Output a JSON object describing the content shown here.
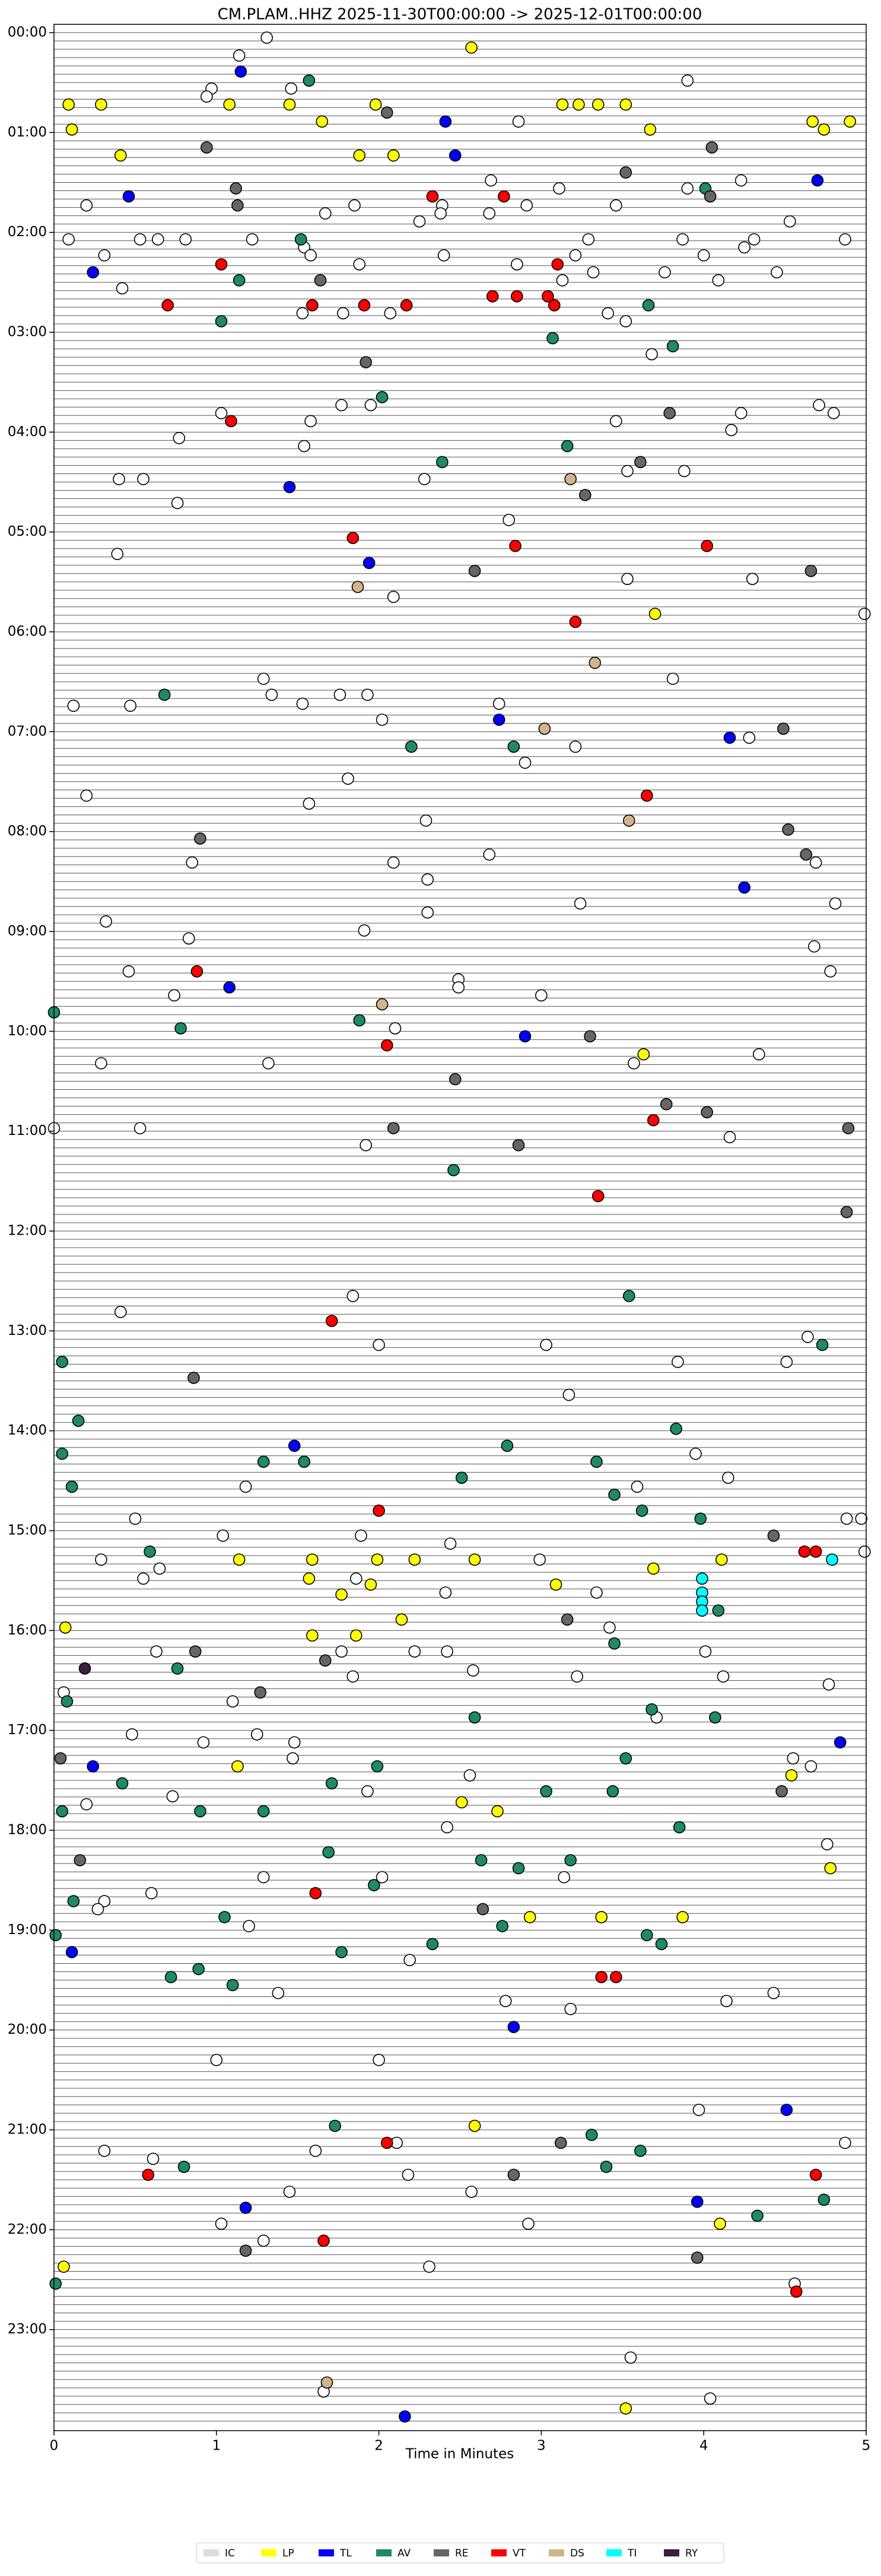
{
  "chart_data": {
    "type": "scatter",
    "title": "CM.PLAM..HHZ  2025-11-30T00:00:00 -> 2025-12-01T00:00:00",
    "xlabel": "Time in Minutes",
    "xlim": [
      0,
      5
    ],
    "xticks": [
      0,
      1,
      2,
      3,
      4,
      5
    ],
    "ylim": [
      0,
      24
    ],
    "y_inverted": true,
    "yticks": [
      {
        "value": 0,
        "label": "00:00"
      },
      {
        "value": 1,
        "label": "01:00"
      },
      {
        "value": 2,
        "label": "02:00"
      },
      {
        "value": 3,
        "label": "03:00"
      },
      {
        "value": 4,
        "label": "04:00"
      },
      {
        "value": 5,
        "label": "05:00"
      },
      {
        "value": 6,
        "label": "06:00"
      },
      {
        "value": 7,
        "label": "07:00"
      },
      {
        "value": 8,
        "label": "08:00"
      },
      {
        "value": 9,
        "label": "09:00"
      },
      {
        "value": 10,
        "label": "10:00"
      },
      {
        "value": 11,
        "label": "11:00"
      },
      {
        "value": 12,
        "label": "12:00"
      },
      {
        "value": 13,
        "label": "13:00"
      },
      {
        "value": 14,
        "label": "14:00"
      },
      {
        "value": 15,
        "label": "15:00"
      },
      {
        "value": 16,
        "label": "16:00"
      },
      {
        "value": 17,
        "label": "17:00"
      },
      {
        "value": 18,
        "label": "18:00"
      },
      {
        "value": 19,
        "label": "19:00"
      },
      {
        "value": 20,
        "label": "20:00"
      },
      {
        "value": 21,
        "label": "21:00"
      },
      {
        "value": 22,
        "label": "22:00"
      },
      {
        "value": 23,
        "label": "23:00"
      }
    ],
    "grid": false,
    "legend": "bottom",
    "series": [
      {
        "name": "IC",
        "color": "#ffffff",
        "x": [
          1.31,
          1.14,
          3.9,
          0.97,
          1.46,
          0.94,
          2.86,
          2.69,
          4.23,
          3.11,
          3.9,
          0.2,
          1.85,
          2.39,
          2.91,
          3.46,
          1.67,
          2.38,
          2.68,
          2.25,
          4.53,
          0.09,
          0.53,
          0.64,
          0.81,
          1.22,
          3.29,
          3.87,
          4.31,
          4.25,
          4.87,
          1.54,
          0.31,
          1.58,
          2.4,
          3.21,
          4.0,
          1.88,
          2.85,
          3.76,
          3.32,
          4.45,
          3.13,
          4.09,
          0.42,
          1.53,
          1.78,
          2.07,
          3.41,
          3.52,
          3.68,
          1.77,
          1.95,
          1.03,
          4.23,
          4.71,
          4.8,
          1.58,
          3.46,
          4.17,
          0.77,
          1.54,
          3.53,
          3.88,
          0.4,
          0.55,
          2.28,
          0.76,
          2.8,
          0.39,
          3.53,
          4.3,
          2.09,
          4.99,
          1.29,
          3.81,
          1.34,
          1.53,
          1.76,
          1.93,
          2.74,
          0.12,
          0.47,
          2.02,
          4.28,
          3.21,
          2.9,
          1.81,
          0.2,
          1.57,
          2.29,
          2.68,
          4.69,
          0.85,
          2.09,
          2.3,
          3.24,
          4.81,
          2.3,
          0.32,
          1.91,
          0.83,
          4.68,
          0.46,
          4.78,
          2.49,
          2.49,
          0.74,
          3.0,
          2.1,
          4.34,
          0.29,
          1.32,
          3.57,
          0.0,
          0.53,
          4.16,
          1.92,
          1.84,
          0.41,
          4.64,
          2.0,
          3.03,
          3.84,
          4.51,
          3.17,
          3.95,
          4.15,
          1.18,
          3.59,
          0.5,
          4.97,
          4.88,
          1.89,
          1.04,
          2.44,
          4.99,
          0.29,
          2.99,
          0.65,
          0.55,
          1.86,
          2.41,
          3.34,
          3.42,
          0.63,
          1.77,
          2.22,
          2.42,
          4.01,
          2.58,
          1.84,
          3.22,
          4.12,
          4.77,
          0.06,
          1.1,
          3.71,
          0.48,
          1.25,
          0.92,
          1.48,
          1.47,
          4.55,
          4.66,
          2.56,
          0.73,
          1.93,
          0.2,
          2.42,
          4.76,
          1.29,
          2.02,
          3.14,
          0.6,
          0.31,
          0.27,
          1.2,
          2.19,
          1.38,
          2.78,
          4.14,
          4.43,
          3.18,
          1.0,
          2.0,
          3.97,
          0.31,
          2.11,
          4.87,
          1.61,
          0.61,
          2.18,
          1.45,
          2.57,
          1.03,
          2.92,
          1.29,
          2.31,
          4.56,
          1.66,
          3.55,
          4.04
        ],
        "values": [
          0.05,
          0.23,
          0.48,
          0.56,
          0.56,
          0.64,
          0.89,
          1.48,
          1.48,
          1.56,
          1.56,
          1.73,
          1.73,
          1.73,
          1.73,
          1.73,
          1.81,
          1.81,
          1.81,
          1.89,
          1.89,
          2.07,
          2.07,
          2.07,
          2.07,
          2.07,
          2.07,
          2.07,
          2.07,
          2.15,
          2.07,
          2.15,
          2.23,
          2.23,
          2.23,
          2.23,
          2.23,
          2.32,
          2.32,
          2.4,
          2.4,
          2.4,
          2.48,
          2.48,
          2.56,
          2.81,
          2.81,
          2.81,
          2.81,
          2.89,
          3.22,
          3.73,
          3.73,
          3.81,
          3.81,
          3.73,
          3.81,
          3.89,
          3.89,
          3.98,
          4.06,
          4.14,
          4.39,
          4.39,
          4.47,
          4.47,
          4.47,
          4.71,
          4.88,
          5.22,
          5.47,
          5.47,
          5.65,
          5.82,
          6.47,
          6.47,
          6.63,
          6.72,
          6.63,
          6.63,
          6.72,
          6.74,
          6.74,
          6.88,
          7.06,
          7.15,
          7.31,
          7.47,
          7.64,
          7.72,
          7.89,
          8.23,
          8.31,
          8.31,
          8.31,
          8.48,
          8.72,
          8.72,
          8.81,
          8.9,
          8.99,
          9.07,
          9.15,
          9.4,
          9.4,
          9.48,
          9.56,
          9.64,
          9.64,
          9.97,
          10.23,
          10.32,
          10.32,
          10.32,
          10.97,
          10.97,
          11.06,
          11.14,
          12.65,
          12.81,
          13.06,
          13.14,
          13.14,
          13.31,
          13.31,
          13.64,
          14.23,
          14.47,
          14.56,
          14.56,
          14.88,
          14.88,
          14.88,
          15.05,
          15.05,
          15.13,
          15.21,
          15.29,
          15.29,
          15.38,
          15.48,
          15.48,
          15.62,
          15.62,
          15.97,
          16.21,
          16.21,
          16.21,
          16.21,
          16.21,
          16.4,
          16.46,
          16.46,
          16.46,
          16.54,
          16.62,
          16.71,
          16.87,
          17.04,
          17.04,
          17.12,
          17.12,
          17.28,
          17.28,
          17.36,
          17.45,
          17.66,
          17.61,
          17.74,
          17.97,
          18.14,
          18.47,
          18.47,
          18.47,
          18.63,
          18.71,
          18.79,
          18.96,
          19.3,
          19.63,
          19.71,
          19.71,
          19.63,
          19.79,
          20.3,
          20.3,
          20.8,
          21.21,
          21.13,
          21.13,
          21.21,
          21.29,
          21.45,
          21.62,
          21.62,
          21.94,
          21.94,
          22.11,
          22.37,
          22.54,
          23.62,
          23.28,
          23.69
        ]
      },
      {
        "name": "LP",
        "color": "#ffff00",
        "x": [
          2.57,
          0.09,
          0.29,
          1.08,
          1.45,
          1.98,
          3.13,
          3.23,
          3.35,
          3.52,
          1.65,
          4.67,
          4.9,
          0.11,
          3.67,
          4.74,
          0.41,
          1.88,
          2.09,
          3.7,
          3.63,
          1.14,
          1.59,
          1.99,
          2.22,
          2.59,
          4.11,
          3.69,
          1.57,
          1.95,
          1.77,
          3.09,
          2.14,
          0.07,
          1.59,
          1.86,
          1.13,
          4.54,
          2.51,
          2.73,
          4.78,
          2.93,
          3.37,
          3.87,
          2.59,
          4.1,
          0.06,
          3.52
        ],
        "values": [
          0.15,
          0.72,
          0.72,
          0.72,
          0.72,
          0.72,
          0.72,
          0.72,
          0.72,
          0.72,
          0.89,
          0.89,
          0.89,
          0.97,
          0.97,
          0.97,
          1.23,
          1.23,
          1.23,
          5.82,
          10.23,
          15.29,
          15.29,
          15.29,
          15.29,
          15.29,
          15.29,
          15.38,
          15.48,
          15.54,
          15.64,
          15.54,
          15.89,
          15.97,
          16.05,
          16.05,
          17.36,
          17.45,
          17.72,
          17.81,
          18.38,
          18.87,
          18.87,
          18.87,
          20.96,
          21.94,
          22.37,
          23.79
        ]
      },
      {
        "name": "TL",
        "color": "#0000ff",
        "x": [
          1.15,
          2.41,
          2.47,
          4.7,
          0.46,
          0.24,
          1.45,
          1.94,
          2.74,
          4.16,
          4.25,
          1.08,
          2.9,
          1.48,
          4.84,
          0.24,
          0.11,
          2.83,
          4.51,
          3.96,
          1.18,
          2.16
        ],
        "values": [
          0.39,
          0.89,
          1.23,
          1.48,
          1.64,
          2.4,
          4.55,
          5.31,
          6.88,
          7.06,
          8.56,
          9.56,
          10.05,
          14.15,
          17.12,
          17.36,
          19.22,
          19.97,
          20.8,
          21.72,
          21.78,
          23.87
        ]
      },
      {
        "name": "AV",
        "color": "#1f8a63",
        "x": [
          1.57,
          4.01,
          1.52,
          1.14,
          3.66,
          1.03,
          3.07,
          3.81,
          2.02,
          3.16,
          2.39,
          0.68,
          2.2,
          2.83,
          0.0,
          1.88,
          0.78,
          2.46,
          3.54,
          4.73,
          0.05,
          0.15,
          3.83,
          2.79,
          0.05,
          1.29,
          1.54,
          3.34,
          0.11,
          2.51,
          3.45,
          3.62,
          3.98,
          0.59,
          4.09,
          3.45,
          0.76,
          0.08,
          3.68,
          2.59,
          4.07,
          1.99,
          3.52,
          0.42,
          1.71,
          3.03,
          3.44,
          0.05,
          0.9,
          1.29,
          3.85,
          1.69,
          2.63,
          3.18,
          2.86,
          1.97,
          0.12,
          1.05,
          2.76,
          0.01,
          3.65,
          3.74,
          2.33,
          1.77,
          0.89,
          0.72,
          1.1,
          1.73,
          3.31,
          3.61,
          0.8,
          3.4,
          4.74,
          4.33,
          0.01
        ],
        "values": [
          0.48,
          1.56,
          2.07,
          2.48,
          2.73,
          2.89,
          3.06,
          3.14,
          3.65,
          4.14,
          4.3,
          6.63,
          7.15,
          7.15,
          9.81,
          9.89,
          9.97,
          11.39,
          12.65,
          13.14,
          13.31,
          13.9,
          13.98,
          14.15,
          14.23,
          14.31,
          14.31,
          14.31,
          14.56,
          14.47,
          14.64,
          14.8,
          14.88,
          15.21,
          15.8,
          16.13,
          16.38,
          16.71,
          16.79,
          16.87,
          16.87,
          17.36,
          17.28,
          17.53,
          17.53,
          17.61,
          17.61,
          17.81,
          17.81,
          17.81,
          17.97,
          18.22,
          18.3,
          18.3,
          18.38,
          18.55,
          18.71,
          18.87,
          18.96,
          19.05,
          19.05,
          19.14,
          19.14,
          19.22,
          19.39,
          19.47,
          19.55,
          20.96,
          21.05,
          21.21,
          21.37,
          21.37,
          21.7,
          21.86,
          22.54
        ]
      },
      {
        "name": "RE",
        "color": "#666666",
        "x": [
          2.05,
          0.94,
          4.05,
          3.52,
          1.12,
          4.04,
          1.13,
          1.64,
          1.92,
          3.79,
          3.61,
          3.27,
          2.59,
          4.66,
          4.49,
          0.9,
          4.52,
          4.63,
          3.3,
          2.47,
          3.77,
          4.02,
          2.09,
          4.89,
          2.86,
          4.88,
          0.86,
          4.43,
          3.16,
          0.87,
          1.67,
          1.27,
          0.04,
          4.48,
          0.16,
          2.64,
          3.12,
          2.83,
          1.18,
          3.96
        ],
        "values": [
          0.8,
          1.15,
          1.15,
          1.4,
          1.56,
          1.64,
          1.73,
          2.48,
          3.3,
          3.81,
          4.3,
          4.63,
          5.39,
          5.39,
          6.97,
          8.07,
          7.98,
          8.23,
          10.05,
          10.48,
          10.73,
          10.81,
          10.97,
          10.97,
          11.14,
          11.81,
          13.47,
          15.05,
          15.89,
          16.21,
          16.3,
          16.62,
          17.28,
          17.61,
          18.3,
          18.79,
          21.13,
          21.45,
          22.21,
          22.28
        ]
      },
      {
        "name": "VT",
        "color": "#ff0000",
        "x": [
          2.33,
          2.77,
          1.03,
          3.1,
          0.7,
          1.59,
          1.91,
          2.17,
          2.7,
          2.85,
          3.04,
          3.08,
          1.09,
          1.84,
          2.84,
          4.02,
          3.21,
          3.65,
          0.88,
          2.05,
          3.69,
          3.35,
          1.71,
          2.0,
          4.62,
          4.69,
          1.61,
          3.37,
          3.46,
          2.05,
          0.58,
          4.69,
          1.66,
          4.57
        ],
        "values": [
          1.64,
          1.64,
          2.32,
          2.32,
          2.73,
          2.73,
          2.73,
          2.73,
          2.64,
          2.64,
          2.64,
          2.73,
          3.89,
          5.06,
          5.14,
          5.14,
          5.9,
          7.64,
          9.4,
          10.14,
          10.89,
          11.65,
          12.9,
          14.8,
          15.21,
          15.21,
          18.63,
          19.47,
          19.47,
          21.13,
          21.45,
          21.45,
          22.11,
          22.62
        ]
      },
      {
        "name": "DS",
        "color": "#d2b48c",
        "x": [
          3.18,
          1.87,
          3.33,
          3.02,
          3.54,
          2.02,
          1.68
        ],
        "values": [
          4.47,
          5.55,
          6.31,
          6.97,
          7.89,
          9.73,
          23.53
        ]
      },
      {
        "name": "TI",
        "color": "#00ffff",
        "x": [
          4.79,
          3.99,
          3.99,
          3.99,
          3.99
        ],
        "values": [
          15.29,
          15.48,
          15.62,
          15.71,
          15.8
        ]
      },
      {
        "name": "RY",
        "color": "#3b1f3b",
        "x": [
          0.19
        ],
        "values": [
          16.38
        ]
      }
    ]
  }
}
